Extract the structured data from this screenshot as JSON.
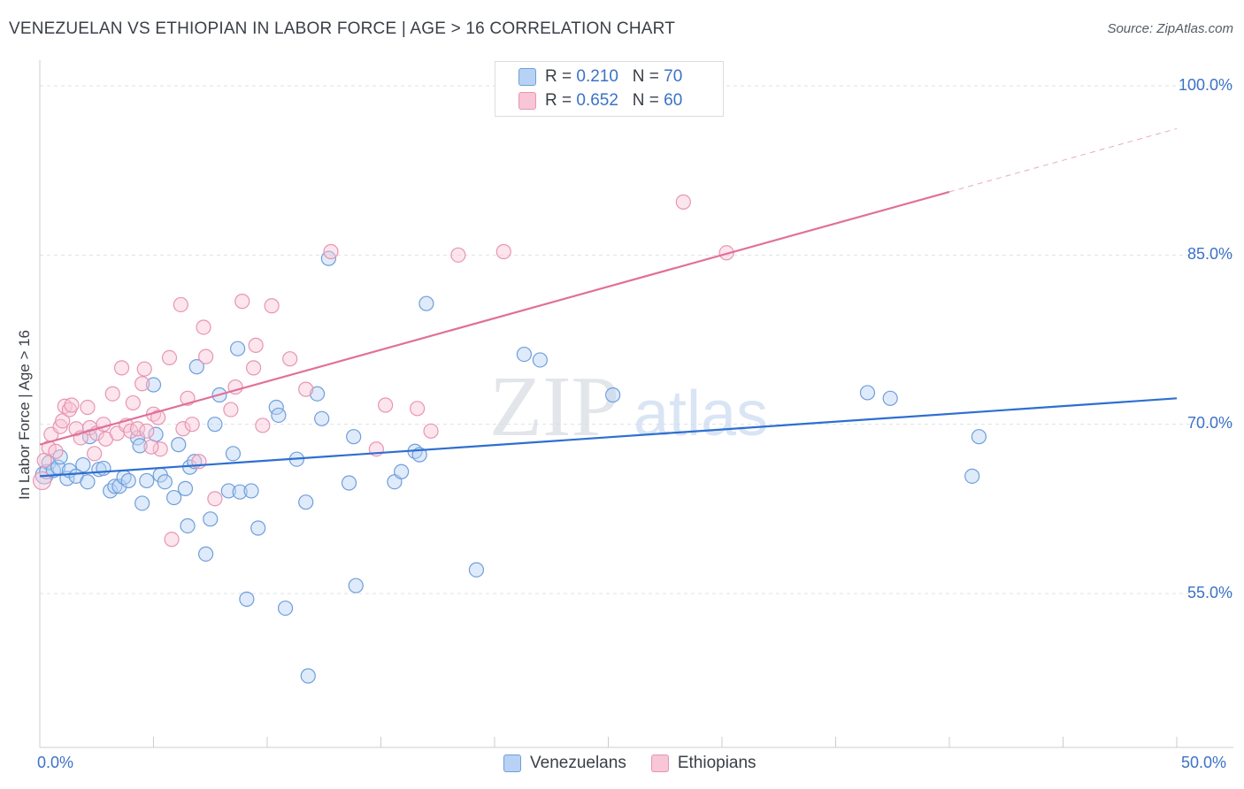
{
  "title": "VENEZUELAN VS ETHIOPIAN IN LABOR FORCE | AGE > 16 CORRELATION CHART",
  "source": "Source: ZipAtlas.com",
  "watermark": {
    "zip": "ZIP",
    "atlas": "atlas"
  },
  "legend_top": [
    {
      "r_label": "R = ",
      "r_value": "0.210",
      "n_label": "N = ",
      "n_value": "70"
    },
    {
      "r_label": "R = ",
      "r_value": "0.652",
      "n_label": "N = ",
      "n_value": "60"
    }
  ],
  "legend_bottom": [
    "Venezuelans",
    "Ethiopians"
  ],
  "colors": {
    "blue_fill": "#b8d2f5",
    "blue_stroke": "#6f9edb",
    "blue_line": "#2e6fd0",
    "pink_fill": "#f8c6d6",
    "pink_stroke": "#e895b2",
    "pink_line": "#e0709a",
    "tick_text": "#3b72c7",
    "grid": "#dde1e6"
  },
  "chart_data": {
    "type": "scatter",
    "title": "VENEZUELAN VS ETHIOPIAN IN LABOR FORCE | AGE > 16 CORRELATION CHART",
    "xlabel": "",
    "ylabel": "In Labor Force | Age > 16",
    "xlim": [
      0,
      50
    ],
    "ylim": [
      40,
      101.5
    ],
    "x_tick_labels": [
      "0.0%",
      "50.0%"
    ],
    "y_ticks": [
      55,
      70,
      85,
      100
    ],
    "y_tick_labels": [
      "55.0%",
      "70.0%",
      "85.0%",
      "100.0%"
    ],
    "series": [
      {
        "name": "Venezuelans",
        "r": 0.21,
        "n": 70,
        "trend": {
          "x0": 0,
          "y0": 65.4,
          "x1": 50,
          "y1": 72.3
        },
        "points": [
          [
            0.2,
            65.5
          ],
          [
            0.3,
            65.8
          ],
          [
            0.4,
            66.6
          ],
          [
            0.6,
            65.9
          ],
          [
            0.8,
            66.2
          ],
          [
            0.9,
            67.1
          ],
          [
            1.2,
            65.2
          ],
          [
            1.3,
            65.9
          ],
          [
            1.6,
            65.4
          ],
          [
            1.9,
            66.4
          ],
          [
            2.1,
            64.9
          ],
          [
            2.2,
            68.9
          ],
          [
            2.6,
            66.0
          ],
          [
            2.8,
            66.1
          ],
          [
            3.1,
            64.1
          ],
          [
            3.3,
            64.5
          ],
          [
            3.5,
            64.5
          ],
          [
            3.7,
            65.3
          ],
          [
            3.9,
            65.0
          ],
          [
            4.3,
            68.8
          ],
          [
            4.4,
            68.1
          ],
          [
            4.5,
            63.0
          ],
          [
            4.7,
            65.0
          ],
          [
            5.0,
            73.5
          ],
          [
            5.1,
            69.1
          ],
          [
            5.3,
            65.5
          ],
          [
            5.5,
            64.9
          ],
          [
            5.9,
            63.5
          ],
          [
            6.1,
            68.2
          ],
          [
            6.4,
            64.3
          ],
          [
            6.5,
            61.0
          ],
          [
            6.6,
            66.2
          ],
          [
            6.8,
            66.7
          ],
          [
            6.9,
            75.1
          ],
          [
            7.3,
            58.5
          ],
          [
            7.5,
            61.6
          ],
          [
            7.7,
            70.0
          ],
          [
            7.9,
            72.6
          ],
          [
            8.3,
            64.1
          ],
          [
            8.5,
            67.4
          ],
          [
            8.7,
            76.7
          ],
          [
            8.8,
            64.0
          ],
          [
            9.1,
            54.5
          ],
          [
            9.3,
            64.1
          ],
          [
            9.6,
            60.8
          ],
          [
            10.4,
            71.5
          ],
          [
            10.5,
            70.8
          ],
          [
            10.8,
            53.7
          ],
          [
            11.3,
            66.9
          ],
          [
            11.7,
            63.1
          ],
          [
            11.8,
            47.7
          ],
          [
            12.2,
            72.7
          ],
          [
            12.4,
            70.5
          ],
          [
            12.7,
            84.7
          ],
          [
            13.6,
            64.8
          ],
          [
            13.9,
            55.7
          ],
          [
            13.8,
            68.9
          ],
          [
            15.6,
            64.9
          ],
          [
            15.9,
            65.8
          ],
          [
            16.5,
            67.6
          ],
          [
            16.7,
            67.3
          ],
          [
            17.0,
            80.7
          ],
          [
            19.2,
            57.1
          ],
          [
            21.3,
            76.2
          ],
          [
            22.0,
            75.7
          ],
          [
            25.2,
            72.6
          ],
          [
            36.4,
            72.8
          ],
          [
            37.4,
            72.3
          ],
          [
            41.0,
            65.4
          ],
          [
            41.3,
            68.9
          ]
        ]
      },
      {
        "name": "Ethiopians",
        "r": 0.652,
        "n": 60,
        "trend": {
          "x0": 0,
          "y0": 68.2,
          "x1": 40,
          "y1": 90.6,
          "dash_to": {
            "x": 50,
            "y": 96.2
          }
        },
        "points": [
          [
            0.1,
            65.0
          ],
          [
            0.2,
            66.8
          ],
          [
            0.4,
            67.9
          ],
          [
            0.5,
            69.1
          ],
          [
            0.7,
            67.6
          ],
          [
            0.9,
            69.8
          ],
          [
            1.0,
            70.3
          ],
          [
            1.1,
            71.6
          ],
          [
            1.3,
            71.3
          ],
          [
            1.4,
            71.7
          ],
          [
            1.6,
            69.6
          ],
          [
            1.8,
            68.8
          ],
          [
            2.1,
            71.5
          ],
          [
            2.2,
            69.7
          ],
          [
            2.4,
            67.4
          ],
          [
            2.5,
            69.2
          ],
          [
            2.8,
            70.0
          ],
          [
            2.9,
            68.7
          ],
          [
            3.2,
            72.7
          ],
          [
            3.4,
            69.2
          ],
          [
            3.6,
            75.0
          ],
          [
            3.8,
            69.9
          ],
          [
            4.0,
            69.4
          ],
          [
            4.1,
            71.9
          ],
          [
            4.3,
            69.6
          ],
          [
            4.5,
            73.6
          ],
          [
            4.6,
            74.9
          ],
          [
            4.7,
            69.4
          ],
          [
            5.0,
            70.9
          ],
          [
            5.2,
            70.6
          ],
          [
            5.3,
            67.8
          ],
          [
            5.7,
            75.9
          ],
          [
            5.8,
            59.8
          ],
          [
            6.2,
            80.6
          ],
          [
            6.3,
            69.6
          ],
          [
            6.5,
            72.3
          ],
          [
            6.7,
            70.0
          ],
          [
            7.0,
            66.7
          ],
          [
            7.2,
            78.6
          ],
          [
            7.3,
            76.0
          ],
          [
            7.7,
            63.4
          ],
          [
            8.4,
            71.3
          ],
          [
            8.6,
            73.3
          ],
          [
            8.9,
            80.9
          ],
          [
            9.4,
            75.0
          ],
          [
            9.5,
            77.0
          ],
          [
            9.8,
            69.9
          ],
          [
            10.2,
            80.5
          ],
          [
            11.0,
            75.8
          ],
          [
            11.7,
            73.1
          ],
          [
            12.8,
            85.3
          ],
          [
            14.8,
            67.8
          ],
          [
            15.2,
            71.7
          ],
          [
            16.6,
            71.4
          ],
          [
            17.2,
            69.4
          ],
          [
            18.4,
            85.0
          ],
          [
            20.4,
            85.3
          ],
          [
            28.3,
            89.7
          ],
          [
            30.2,
            85.2
          ],
          [
            4.9,
            68.0
          ]
        ]
      }
    ]
  }
}
